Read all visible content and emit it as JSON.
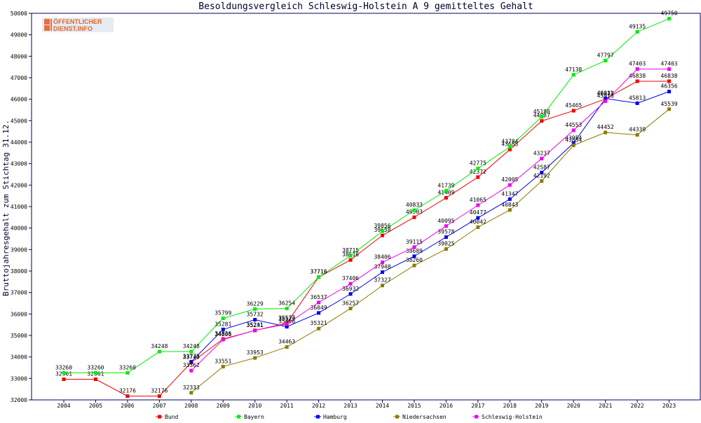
{
  "logo": {
    "line1": "ÖFFENTLICHER",
    "line2": "DIENST.INFO"
  },
  "chart_data": {
    "type": "line",
    "title": "Besoldungsvergleich Schleswig-Holstein A 9 gemitteltes Gehalt",
    "xlabel": "",
    "ylabel": "Bruttojahresgehalt zum Stichtag 31.12.",
    "x": [
      "2004",
      "2005",
      "2006",
      "2007",
      "2008",
      "2009",
      "2010",
      "2011",
      "2012",
      "2013",
      "2014",
      "2015",
      "2016",
      "2017",
      "2018",
      "2019",
      "2020",
      "2021",
      "2022",
      "2023"
    ],
    "y_ticks": [
      32000,
      33000,
      34000,
      35000,
      36000,
      37000,
      38000,
      39000,
      40000,
      41000,
      42000,
      43000,
      44000,
      45000,
      46000,
      47000,
      48000,
      49000,
      50000
    ],
    "ylim": [
      32000,
      50000
    ],
    "grid": false,
    "legend_position": "bottom",
    "series": [
      {
        "name": "Bund",
        "color": "#ee0000",
        "values": [
          32961,
          32961,
          32176,
          32176,
          33740,
          34836,
          35231,
          35577,
          37716,
          38516,
          39658,
          40503,
          41409,
          42372,
          43655,
          44987,
          45465,
          46015,
          46838,
          46838
        ]
      },
      {
        "name": "Bayern",
        "color": "#00ee00",
        "values": [
          33260,
          33260,
          33260,
          34248,
          34248,
          35799,
          36229,
          36254,
          37716,
          38715,
          39856,
          40833,
          41739,
          42775,
          43784,
          45180,
          47138,
          47797,
          49135,
          49750
        ]
      },
      {
        "name": "Hamburg",
        "color": "#0000ee",
        "values": [
          null,
          null,
          null,
          null,
          33775,
          35281,
          35732,
          35406,
          36049,
          36932,
          37948,
          38689,
          39578,
          40477,
          41347,
          42587,
          43954,
          46032,
          45813,
          46356
        ]
      },
      {
        "name": "Niedersachsen",
        "color": "#8b7b00",
        "values": [
          null,
          null,
          null,
          null,
          32333,
          33551,
          33953,
          34463,
          35321,
          36257,
          37327,
          38260,
          39025,
          40042,
          40843,
          42192,
          43854,
          44452,
          44339,
          45539
        ]
      },
      {
        "name": "Schleswig-Holstein",
        "color": "#ee00ee",
        "values": [
          null,
          null,
          null,
          null,
          33362,
          34806,
          35241,
          35529,
          36537,
          37406,
          38406,
          39115,
          40095,
          41065,
          42005,
          43237,
          44553,
          45910,
          47403,
          47403
        ]
      }
    ]
  }
}
